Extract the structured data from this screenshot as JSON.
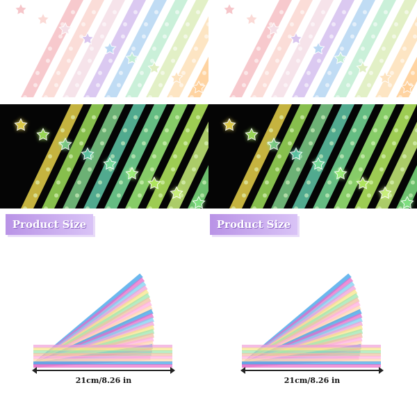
{
  "sections": {
    "banner_text": "Product Size",
    "size_label": "21cm/8.26 in"
  },
  "palette": {
    "daylight": [
      "#f6c3c8",
      "#fbd9d4",
      "#f5e0e8",
      "#d7c3ef",
      "#b9d8f3",
      "#c4eed5",
      "#dfeec0",
      "#fde2bd",
      "#ffcf98"
    ],
    "glow": [
      "#e7d24a",
      "#9fe05a",
      "#7fd08a",
      "#5fc8a8",
      "#77dd9a",
      "#9ff07a",
      "#b8f062",
      "#c9f07a",
      "#7fe080"
    ],
    "fan": [
      "#3aa0e8",
      "#e86ac8",
      "#7fd0f0",
      "#f0a0d8",
      "#f7e58a",
      "#9ee6b0",
      "#f0c0a0",
      "#ffb0e0",
      "#ffd9b0"
    ]
  }
}
